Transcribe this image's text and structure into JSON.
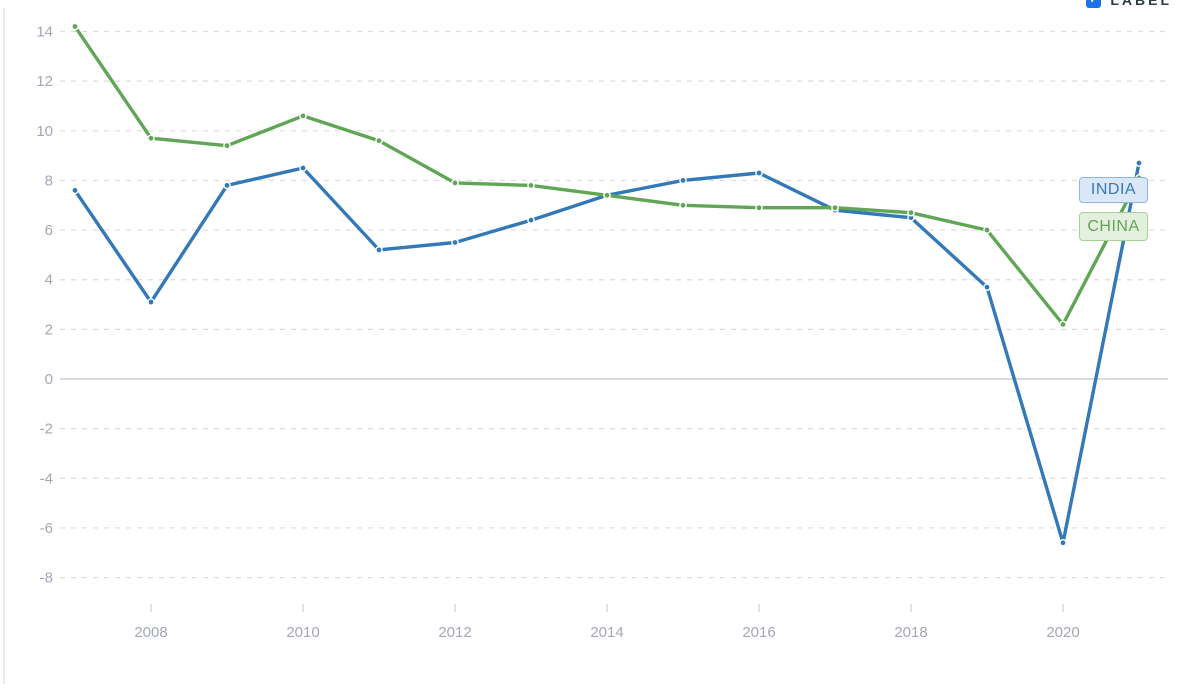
{
  "controls": {
    "label_toggle": {
      "label": "LABEL",
      "checked": true,
      "checkmark": "✓",
      "color": "#1a73e8"
    }
  },
  "chart_data": {
    "type": "line",
    "title": "",
    "xlabel": "",
    "ylabel": "",
    "x": [
      2007,
      2008,
      2009,
      2010,
      2011,
      2012,
      2013,
      2014,
      2015,
      2016,
      2017,
      2018,
      2019,
      2020,
      2021
    ],
    "series": [
      {
        "name": "INDIA",
        "color": "#3379b7",
        "values": [
          7.6,
          3.1,
          7.8,
          8.5,
          5.2,
          5.5,
          6.4,
          7.4,
          8.0,
          8.3,
          6.8,
          6.5,
          3.7,
          -6.6,
          8.7
        ]
      },
      {
        "name": "CHINA",
        "color": "#61a656",
        "values": [
          14.2,
          9.7,
          9.4,
          10.6,
          9.6,
          7.9,
          7.8,
          7.4,
          7.0,
          6.9,
          6.9,
          6.7,
          6.0,
          2.2,
          8.1
        ]
      }
    ],
    "ylim": [
      -8,
      14
    ],
    "yticks": [
      14,
      12,
      10,
      8,
      6,
      4,
      2,
      0,
      -2,
      -4,
      -6,
      -8
    ],
    "xticks": [
      2008,
      2010,
      2012,
      2014,
      2016,
      2018,
      2020
    ],
    "grid": "horizontal-dashed",
    "zero_line": "solid",
    "legend_position": "right-end-labels",
    "axis_text_color": "#a2a7b3",
    "gridline_color": "#dcdcdc",
    "zero_line_color": "#ccd1d7"
  }
}
